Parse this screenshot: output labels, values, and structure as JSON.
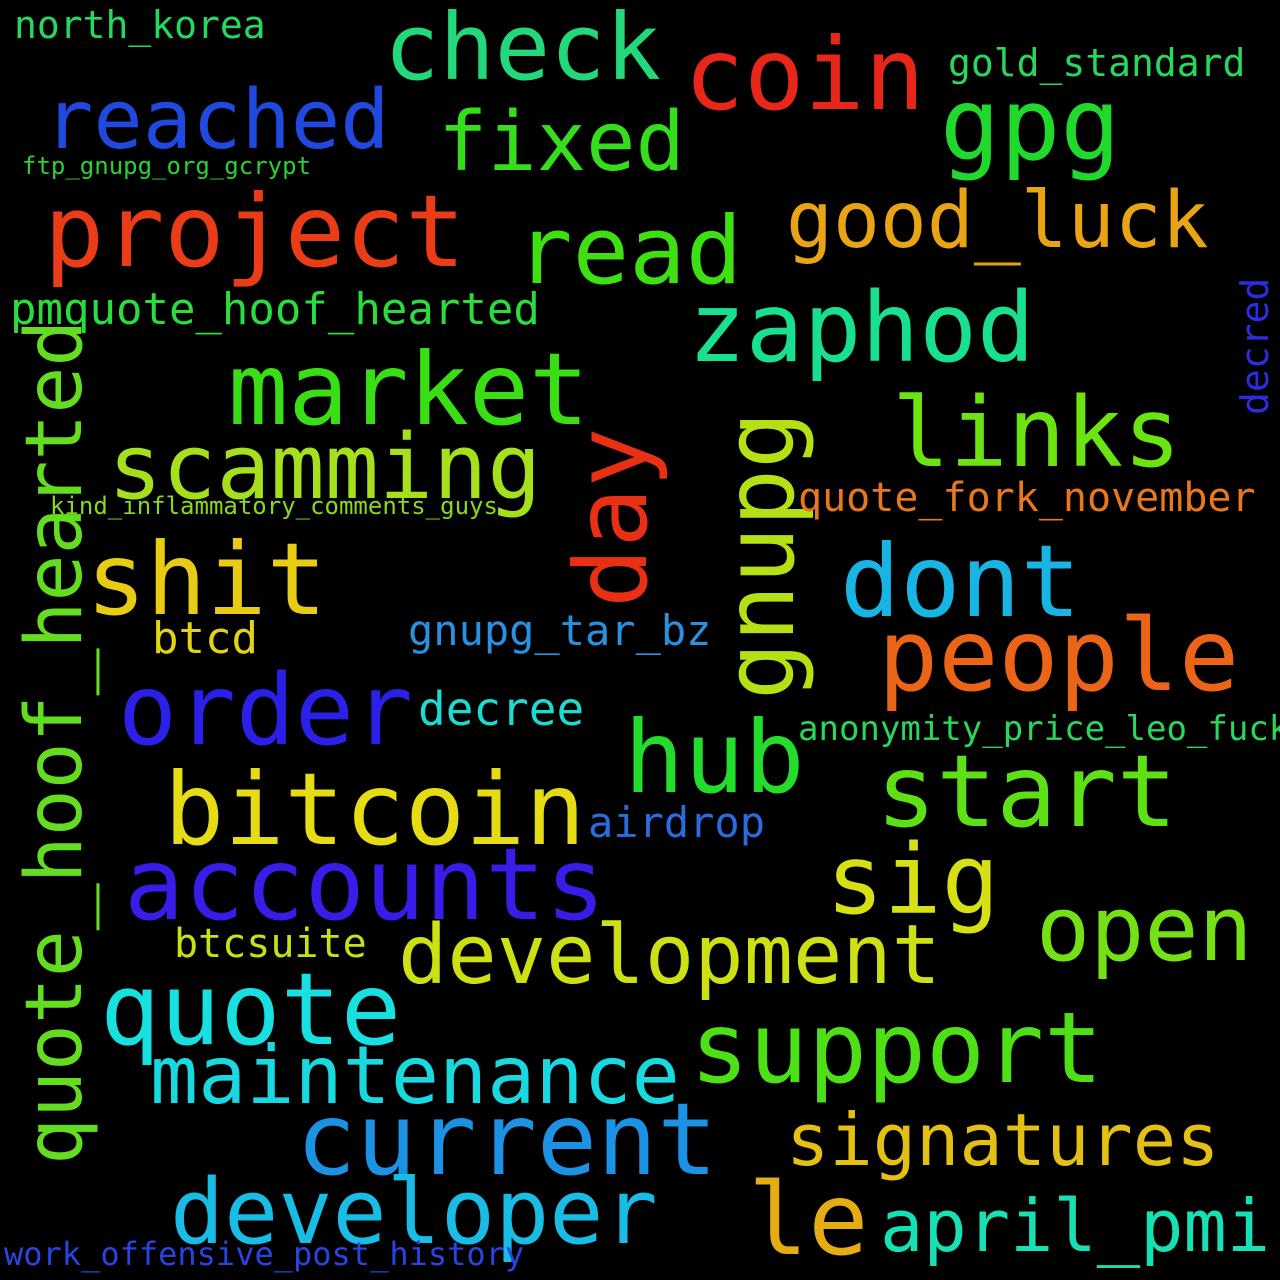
{
  "words": {
    "check": {
      "text": "check",
      "color": "#23d87a"
    },
    "coin": {
      "text": "coin",
      "color": "#e8261a"
    },
    "gpg": {
      "text": "gpg",
      "color": "#20d92c"
    },
    "north_korea": {
      "text": "north_korea",
      "color": "#24d860"
    },
    "gold_standard": {
      "text": "gold_standard",
      "color": "#27d85c"
    },
    "reached": {
      "text": "reached",
      "color": "#2049e0"
    },
    "fixed": {
      "text": "fixed",
      "color": "#35dd1c"
    },
    "ftp_gnupg_org_gcrypt": {
      "text": "ftp_gnupg_org_gcrypt",
      "color": "#2ad036"
    },
    "project": {
      "text": "project",
      "color": "#ea3c16"
    },
    "read": {
      "text": "read",
      "color": "#3ee012"
    },
    "good_luck": {
      "text": "good_luck",
      "color": "#e8a414"
    },
    "decred": {
      "text": "decred",
      "color": "#2a2ee0"
    },
    "pmquote_hoof_hearted": {
      "text": "pmquote_hoof_hearted",
      "color": "#2adc3e"
    },
    "zaphod": {
      "text": "zaphod",
      "color": "#18e08e"
    },
    "market": {
      "text": "market",
      "color": "#3ade14"
    },
    "links": {
      "text": "links",
      "color": "#6be412"
    },
    "gnupg": {
      "text": "gnupg",
      "color": "#b4e014"
    },
    "day": {
      "text": "day",
      "color": "#ea3014"
    },
    "scamming": {
      "text": "scamming",
      "color": "#a6e01c"
    },
    "quote_hoof_hearted": {
      "text": "quote_hoof_hearted",
      "color": "#64dc20"
    },
    "kind_inflammatory_comments_guys": {
      "text": "kind_inflammatory_comments_guys",
      "color": "#8ad81c"
    },
    "quote_fork_november": {
      "text": "quote_fork_november",
      "color": "#e8781c"
    },
    "shit": {
      "text": "shit",
      "color": "#e8cc14"
    },
    "dont": {
      "text": "dont",
      "color": "#18b4e4"
    },
    "btcd": {
      "text": "btcd",
      "color": "#e2d414"
    },
    "gnupg_tar_bz": {
      "text": "gnupg_tar_bz",
      "color": "#2a90e0"
    },
    "people": {
      "text": "people",
      "color": "#ec6418"
    },
    "order": {
      "text": "order",
      "color": "#2a20e8"
    },
    "decree": {
      "text": "decree",
      "color": "#1cdcd0"
    },
    "hub": {
      "text": "hub",
      "color": "#24dc2c"
    },
    "anonymity_price_leo_fuck": {
      "text": "anonymity_price_leo_fuck",
      "color": "#28d85c"
    },
    "bitcoin": {
      "text": "bitcoin",
      "color": "#e6dc14"
    },
    "start": {
      "text": "start",
      "color": "#5ee016"
    },
    "airdrop": {
      "text": "airdrop",
      "color": "#2a6ce0"
    },
    "accounts": {
      "text": "accounts",
      "color": "#3a1ce8"
    },
    "sig": {
      "text": "sig",
      "color": "#d6e014"
    },
    "open": {
      "text": "open",
      "color": "#76e016"
    },
    "btcsuite": {
      "text": "btcsuite",
      "color": "#c8e014"
    },
    "development": {
      "text": "development",
      "color": "#cce014"
    },
    "quote": {
      "text": "quote",
      "color": "#18e0e0"
    },
    "support": {
      "text": "support",
      "color": "#4ee016"
    },
    "maintenance": {
      "text": "maintenance",
      "color": "#1ad8e0"
    },
    "current": {
      "text": "current",
      "color": "#1c92e4"
    },
    "signatures": {
      "text": "signatures",
      "color": "#e4c014"
    },
    "developer": {
      "text": "developer",
      "color": "#18bce4"
    },
    "le": {
      "text": "le",
      "color": "#e6ac14"
    },
    "april_pmi": {
      "text": "april_pmi",
      "color": "#16e0b4"
    },
    "work_offensive_post_history": {
      "text": "work_offensive_post_history",
      "color": "#2a44e0"
    }
  }
}
